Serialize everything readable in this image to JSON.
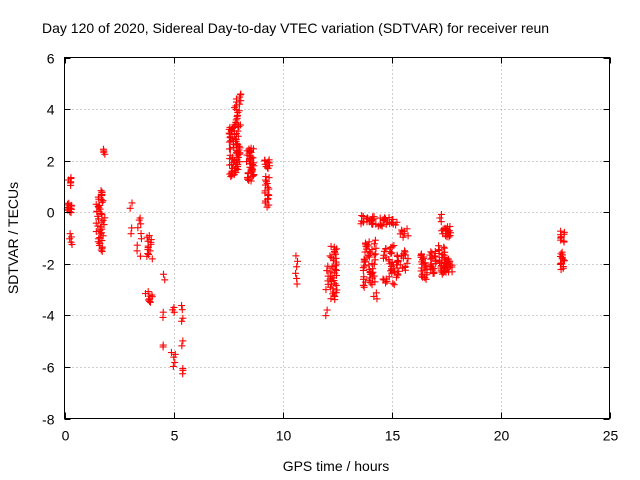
{
  "chart_data": {
    "type": "scatter",
    "title": "Day 120 of 2020, Sidereal Day-to-day VTEC variation (SDTVAR) for receiver reun",
    "xlabel": "GPS time / hours",
    "ylabel": "SDTVAR / TECUs",
    "xlim": [
      0,
      25
    ],
    "ylim": [
      -8,
      6
    ],
    "xticks": [
      0,
      5,
      10,
      15,
      20,
      25
    ],
    "yticks": [
      -8,
      -6,
      -4,
      -2,
      0,
      2,
      4,
      6
    ],
    "grid": true,
    "marker": "plus",
    "color": "#ff0000",
    "series": [
      {
        "name": "SDTVAR",
        "clusters": [
          {
            "x": [
              0.15,
              0.35
            ],
            "y": [
              1.05,
              1.35
            ],
            "n": 6
          },
          {
            "x": [
              0.1,
              0.35
            ],
            "y": [
              0.0,
              0.35
            ],
            "n": 12
          },
          {
            "x": [
              0.15,
              0.35
            ],
            "y": [
              -1.25,
              -0.85
            ],
            "n": 5
          },
          {
            "x": [
              1.45,
              1.85
            ],
            "y": [
              -1.5,
              0.85
            ],
            "n": 45
          },
          {
            "x": [
              1.75,
              1.9
            ],
            "y": [
              2.25,
              2.45
            ],
            "n": 4
          },
          {
            "x": [
              3.0,
              3.1
            ],
            "y": [
              0.15,
              0.35
            ],
            "n": 2
          },
          {
            "x": [
              3.0,
              3.1
            ],
            "y": [
              -0.85,
              -0.6
            ],
            "n": 2
          },
          {
            "x": [
              3.4,
              3.6
            ],
            "y": [
              -0.45,
              -0.2
            ],
            "n": 3
          },
          {
            "x": [
              3.3,
              3.6
            ],
            "y": [
              -1.7,
              -0.6
            ],
            "n": 6
          },
          {
            "x": [
              3.75,
              4.05
            ],
            "y": [
              -1.8,
              -0.9
            ],
            "n": 14
          },
          {
            "x": [
              3.7,
              4.05
            ],
            "y": [
              -3.5,
              -3.1
            ],
            "n": 9
          },
          {
            "x": [
              4.5,
              4.6
            ],
            "y": [
              -2.6,
              -2.4
            ],
            "n": 2
          },
          {
            "x": [
              4.5,
              4.6
            ],
            "y": [
              -4.1,
              -3.9
            ],
            "n": 2
          },
          {
            "x": [
              4.45,
              4.55
            ],
            "y": [
              -5.25,
              -5.15
            ],
            "n": 2
          },
          {
            "x": [
              4.9,
              5.1
            ],
            "y": [
              -3.9,
              -3.7
            ],
            "n": 3
          },
          {
            "x": [
              4.9,
              5.1
            ],
            "y": [
              -5.6,
              -5.45
            ],
            "n": 3
          },
          {
            "x": [
              4.95,
              5.1
            ],
            "y": [
              -6.0,
              -5.85
            ],
            "n": 2
          },
          {
            "x": [
              5.35,
              5.45
            ],
            "y": [
              -3.8,
              -3.6
            ],
            "n": 2
          },
          {
            "x": [
              5.35,
              5.45
            ],
            "y": [
              -4.25,
              -4.1
            ],
            "n": 2
          },
          {
            "x": [
              5.35,
              5.45
            ],
            "y": [
              -5.2,
              -5.0
            ],
            "n": 2
          },
          {
            "x": [
              5.35,
              5.45
            ],
            "y": [
              -6.25,
              -6.05
            ],
            "n": 3
          },
          {
            "x": [
              7.55,
              8.05
            ],
            "y": [
              1.4,
              3.4
            ],
            "n": 70
          },
          {
            "x": [
              7.75,
              8.1
            ],
            "y": [
              3.3,
              4.6
            ],
            "n": 20
          },
          {
            "x": [
              8.35,
              8.7
            ],
            "y": [
              1.2,
              2.5
            ],
            "n": 40
          },
          {
            "x": [
              9.15,
              9.45
            ],
            "y": [
              1.7,
              2.05
            ],
            "n": 10
          },
          {
            "x": [
              9.15,
              9.4
            ],
            "y": [
              0.2,
              1.4
            ],
            "n": 18
          },
          {
            "x": [
              10.6,
              10.7
            ],
            "y": [
              -2.8,
              -1.7
            ],
            "n": 6
          },
          {
            "x": [
              11.9,
              12.1
            ],
            "y": [
              -3.0,
              -2.1
            ],
            "n": 6
          },
          {
            "x": [
              11.95,
              12.05
            ],
            "y": [
              -4.0,
              -3.8
            ],
            "n": 2
          },
          {
            "x": [
              12.15,
              12.5
            ],
            "y": [
              -3.4,
              -1.3
            ],
            "n": 40
          },
          {
            "x": [
              13.6,
              14.6
            ],
            "y": [
              -0.55,
              -0.15
            ],
            "n": 28
          },
          {
            "x": [
              13.7,
              14.3
            ],
            "y": [
              -2.9,
              -1.1
            ],
            "n": 50
          },
          {
            "x": [
              14.15,
              14.35
            ],
            "y": [
              -3.35,
              -3.15
            ],
            "n": 3
          },
          {
            "x": [
              14.6,
              15.3
            ],
            "y": [
              -0.5,
              -0.2
            ],
            "n": 16
          },
          {
            "x": [
              14.6,
              15.3
            ],
            "y": [
              -2.8,
              -1.3
            ],
            "n": 40
          },
          {
            "x": [
              15.3,
              15.8
            ],
            "y": [
              -2.3,
              -1.5
            ],
            "n": 16
          },
          {
            "x": [
              15.3,
              15.8
            ],
            "y": [
              -0.95,
              -0.65
            ],
            "n": 8
          },
          {
            "x": [
              16.35,
              16.65
            ],
            "y": [
              -2.6,
              -1.6
            ],
            "n": 24
          },
          {
            "x": [
              16.7,
              17.05
            ],
            "y": [
              -2.4,
              -1.5
            ],
            "n": 20
          },
          {
            "x": [
              17.15,
              17.45
            ],
            "y": [
              -2.4,
              -1.3
            ],
            "n": 24
          },
          {
            "x": [
              17.4,
              17.8
            ],
            "y": [
              -2.35,
              -1.8
            ],
            "n": 22
          },
          {
            "x": [
              17.2,
              17.75
            ],
            "y": [
              -0.95,
              -0.55
            ],
            "n": 18
          },
          {
            "x": [
              17.2,
              17.3
            ],
            "y": [
              -0.35,
              -0.1
            ],
            "n": 3
          },
          {
            "x": [
              22.75,
              22.95
            ],
            "y": [
              -1.15,
              -0.75
            ],
            "n": 10
          },
          {
            "x": [
              22.75,
              22.95
            ],
            "y": [
              -2.2,
              -1.55
            ],
            "n": 14
          }
        ]
      }
    ]
  }
}
